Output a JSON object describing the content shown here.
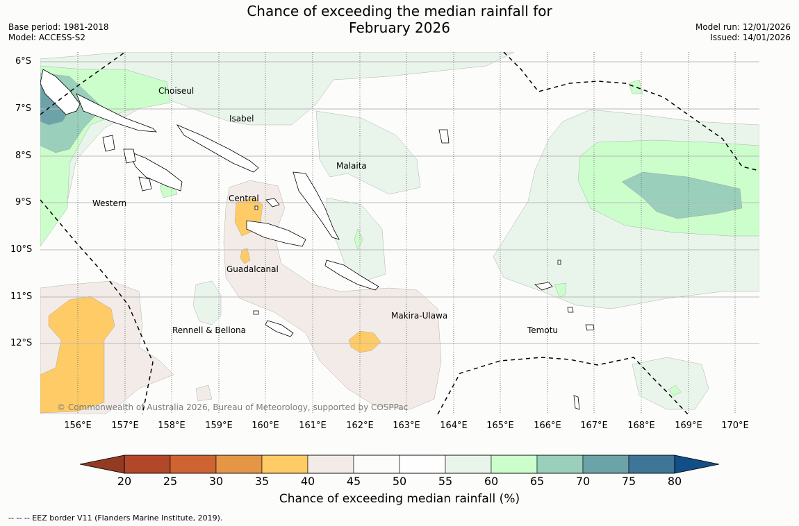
{
  "header": {
    "title_line1": "Chance of exceeding the median rainfall for",
    "title_line2": "February 2026",
    "base_period": "Base period: 1981-2018",
    "model": "Model: ACCESS-S2",
    "model_run": "Model run: 12/01/2026",
    "issued": "Issued: 14/01/2026"
  },
  "map": {
    "lat_labels": [
      "6°S",
      "7°S",
      "8°S",
      "9°S",
      "10°S",
      "11°S",
      "12°S"
    ],
    "lon_labels": [
      "156°E",
      "157°E",
      "158°E",
      "159°E",
      "160°E",
      "161°E",
      "162°E",
      "163°E",
      "164°E",
      "165°E",
      "166°E",
      "167°E",
      "168°E",
      "169°E",
      "170°E"
    ],
    "places": {
      "choiseul": "Choiseul",
      "isabel": "Isabel",
      "malaita": "Malaita",
      "western": "Western",
      "central": "Central",
      "guadalcanal": "Guadalcanal",
      "makira": "Makira-Ulawa",
      "rennell": "Rennell & Bellona",
      "temotu": "Temotu"
    },
    "copyright": "© Commonwealth of Australia 2026, Bureau of Meteorology, supported by COSPPac",
    "colors": {
      "c35_40": "#fecb66",
      "c40_45": "#f2ebe7",
      "c55_60": "#e9f4ea",
      "c60_65": "#ccfecc",
      "c65_70": "#99cfbb",
      "c70_75": "#6ca3a8",
      "land": "#ffffff"
    }
  },
  "colorbar": {
    "title": "Chance of exceeding median rainfall (%)",
    "ticks": [
      "20",
      "25",
      "30",
      "35",
      "40",
      "45",
      "50",
      "55",
      "60",
      "65",
      "70",
      "75",
      "80"
    ],
    "colors": [
      "#b2472a",
      "#cd6432",
      "#e59546",
      "#fecb66",
      "#f2ebe7",
      "#fcfdfb",
      "#fefefe",
      "#e9f4ea",
      "#ccfecc",
      "#99cfbb",
      "#6ca3a8",
      "#3f7698"
    ],
    "low_color": "#923b22",
    "high_color": "#144e88"
  },
  "footnote": "-- -- -- EEZ border V11 (Flanders Marine Institute, 2019)."
}
